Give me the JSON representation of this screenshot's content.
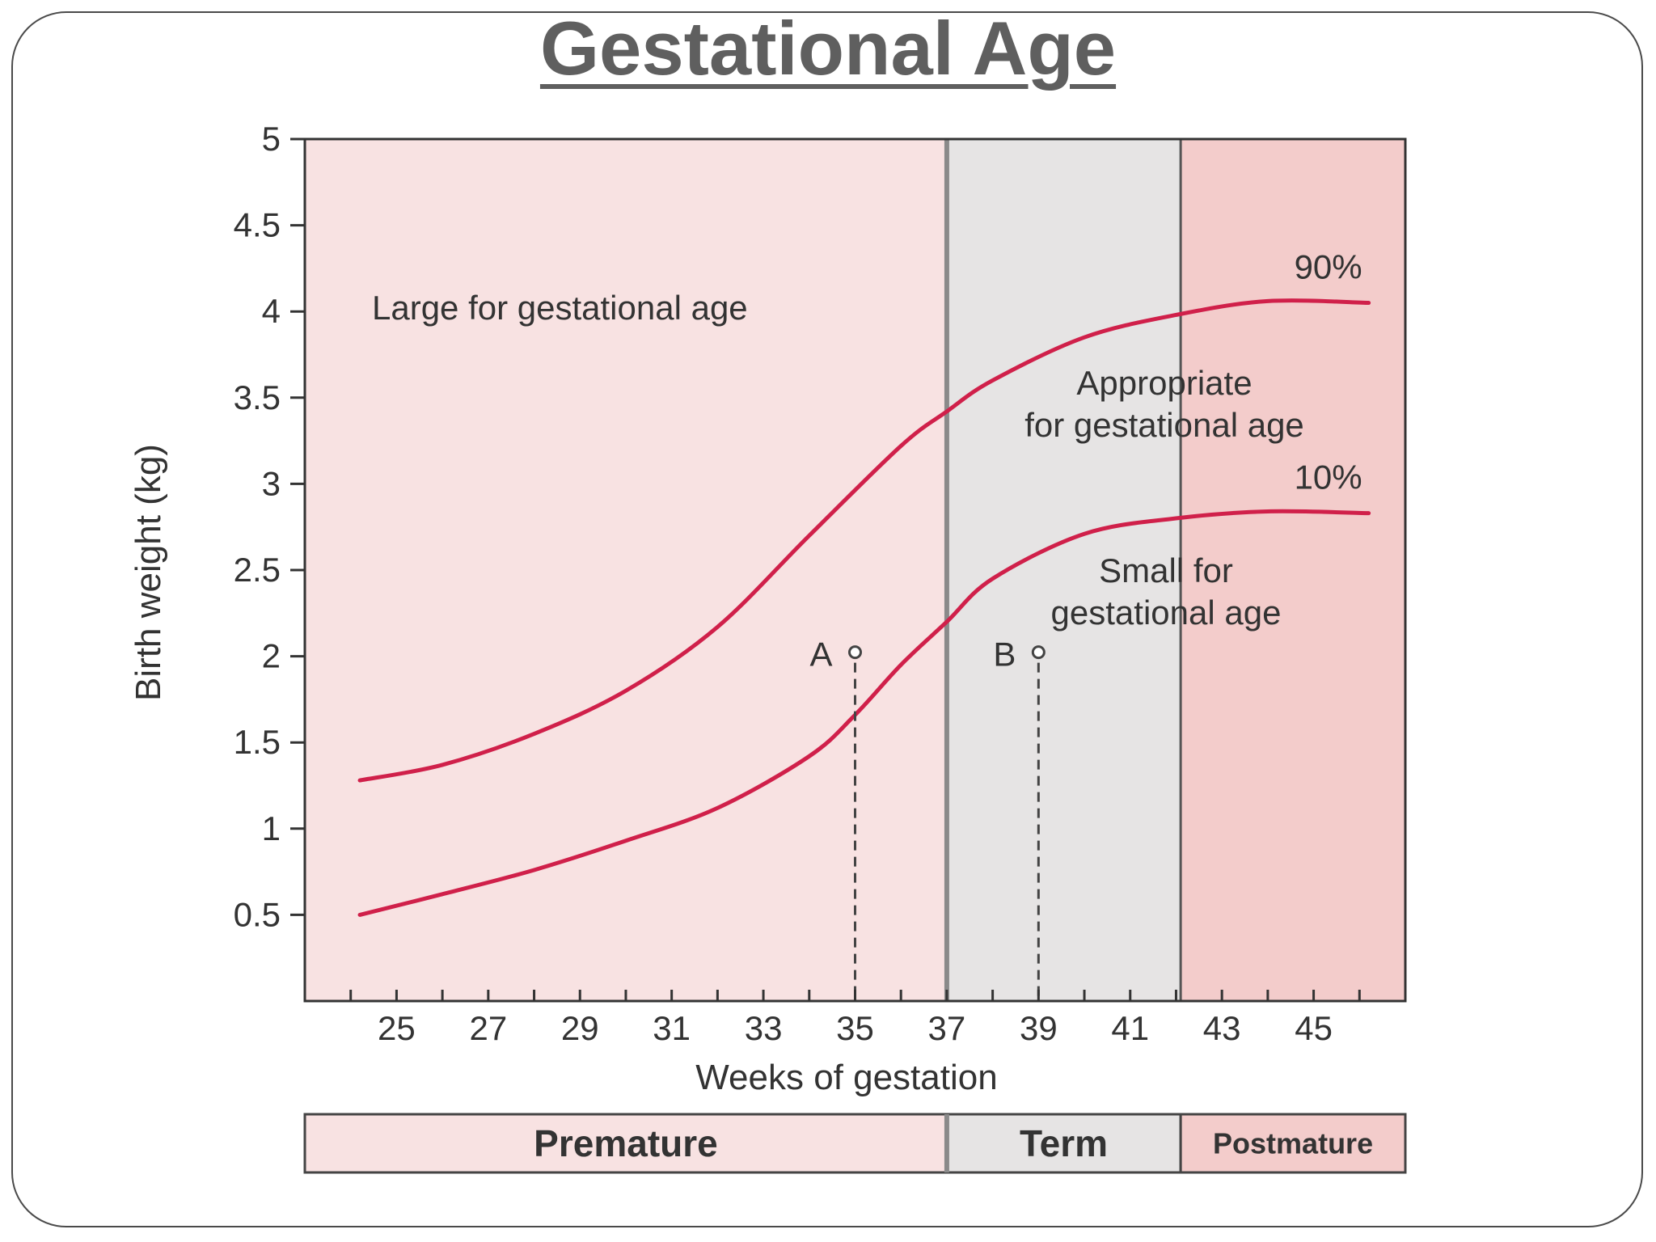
{
  "slide": {
    "title": "Gestational Age"
  },
  "colors": {
    "premature_fill": "#f8e2e2",
    "term_fill": "#e6e4e4",
    "postmature_fill": "#f3cccb",
    "curve": "#d0204a",
    "divider": "#8a8a8a",
    "text": "#333333"
  },
  "chart_data": {
    "type": "line",
    "xlabel": "Weeks of gestation",
    "ylabel": "Birth weight (kg)",
    "xlim": [
      23,
      47
    ],
    "ylim": [
      0,
      5
    ],
    "x_tick_labels": [
      25,
      27,
      29,
      31,
      33,
      35,
      37,
      39,
      41,
      43,
      45
    ],
    "x_minor_ticks": [
      24,
      25,
      26,
      27,
      28,
      29,
      30,
      31,
      32,
      33,
      34,
      35,
      36,
      37,
      38,
      39,
      40,
      41,
      42,
      43,
      44,
      45,
      46
    ],
    "y_tick_labels": [
      0.5,
      1,
      1.5,
      2,
      2.5,
      3,
      3.5,
      4,
      4.5,
      5
    ],
    "series": [
      {
        "name": "90%",
        "x": [
          24.2,
          26,
          28,
          30,
          32,
          34,
          36,
          37,
          38,
          40,
          42,
          44,
          46.2
        ],
        "y": [
          1.28,
          1.37,
          1.55,
          1.8,
          2.17,
          2.7,
          3.22,
          3.42,
          3.6,
          3.85,
          3.98,
          4.06,
          4.05
        ]
      },
      {
        "name": "10%",
        "x": [
          24.2,
          26,
          28,
          30,
          32,
          34,
          35,
          36,
          37,
          38,
          40,
          42,
          44,
          46.2
        ],
        "y": [
          0.5,
          0.62,
          0.76,
          0.93,
          1.12,
          1.42,
          1.66,
          1.95,
          2.2,
          2.45,
          2.71,
          2.8,
          2.84,
          2.83
        ]
      }
    ],
    "regions": [
      {
        "label": "Premature",
        "from": 23,
        "to": 37
      },
      {
        "label": "Term",
        "from": 37,
        "to": 42.1
      },
      {
        "label": "Postmature",
        "from": 42.1,
        "to": 47
      }
    ],
    "region_labels": {
      "large": "Large for gestational age",
      "appropriate_line1": "Appropriate",
      "appropriate_line2": "for gestational age",
      "small_line1": "Small for",
      "small_line2": "gestational age"
    },
    "points": [
      {
        "label": "A",
        "x": 35,
        "y": 2.0
      },
      {
        "label": "B",
        "x": 39,
        "y": 2.0
      }
    ]
  }
}
